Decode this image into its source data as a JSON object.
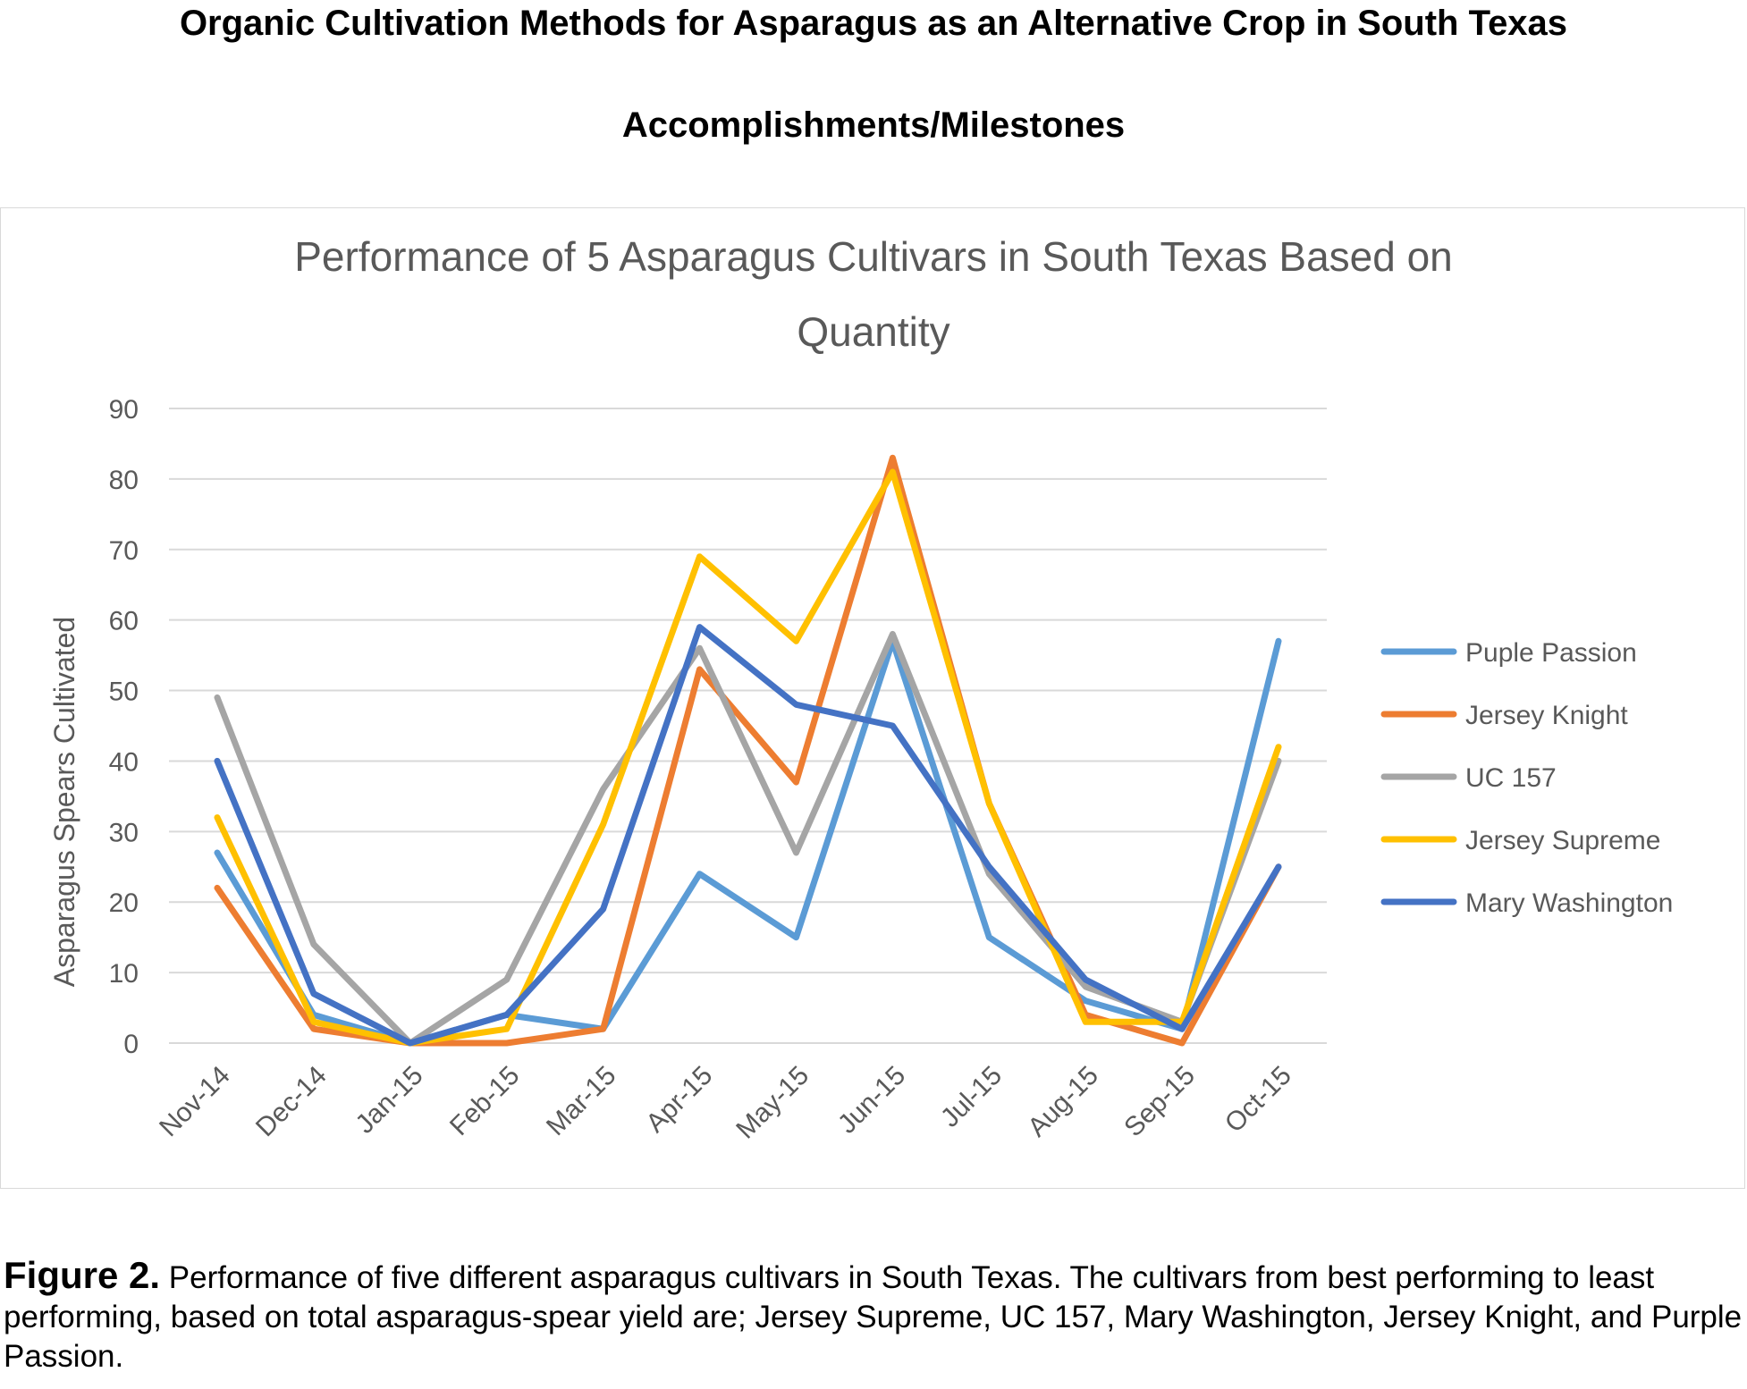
{
  "header": {
    "title": "Organic Cultivation Methods for Asparagus as an Alternative Crop in South Texas",
    "subtitle": "Accomplishments/Milestones"
  },
  "caption": {
    "lead": "Figure 2.",
    "text": " Performance of five different asparagus cultivars in South Texas. The cultivars from best performing to least performing, based on total asparagus-spear yield are; Jersey Supreme, UC 157, Mary Washington, Jersey Knight, and Purple Passion."
  },
  "chart_data": {
    "type": "line",
    "title_lines": [
      "Performance of 5 Asparagus Cultivars in South Texas Based on",
      "Quantity"
    ],
    "ylabel": "Asparagus Spears Cultivated",
    "xlabel": "",
    "ylim": [
      0,
      90
    ],
    "yticks": [
      0,
      10,
      20,
      30,
      40,
      50,
      60,
      70,
      80,
      90
    ],
    "grid": "horizontal",
    "legend_position": "right",
    "categories": [
      "Nov-14",
      "Dec-14",
      "Jan-15",
      "Feb-15",
      "Mar-15",
      "Apr-15",
      "May-15",
      "Jun-15",
      "Jul-15",
      "Aug-15",
      "Sep-15",
      "Oct-15"
    ],
    "series": [
      {
        "name": "Puple Passion",
        "color": "#5b9bd5",
        "values": [
          27,
          4,
          0,
          4,
          2,
          24,
          15,
          57,
          15,
          6,
          2,
          57
        ]
      },
      {
        "name": "Jersey Knight",
        "color": "#ed7d31",
        "values": [
          22,
          2,
          0,
          0,
          2,
          53,
          37,
          83,
          34,
          4,
          0,
          25
        ]
      },
      {
        "name": "UC 157",
        "color": "#a5a5a5",
        "values": [
          49,
          14,
          0,
          9,
          36,
          56,
          27,
          58,
          24,
          8,
          3,
          40
        ]
      },
      {
        "name": "Jersey Supreme",
        "color": "#ffc000",
        "values": [
          32,
          3,
          0,
          2,
          31,
          69,
          57,
          81,
          34,
          3,
          3,
          42
        ]
      },
      {
        "name": "Mary Washington",
        "color": "#4472c4",
        "values": [
          40,
          7,
          0,
          4,
          19,
          59,
          48,
          45,
          25,
          9,
          2,
          25
        ]
      }
    ],
    "colors": {
      "grid": "#d9d9d9",
      "axis_text": "#595959",
      "title_text": "#595959"
    }
  }
}
